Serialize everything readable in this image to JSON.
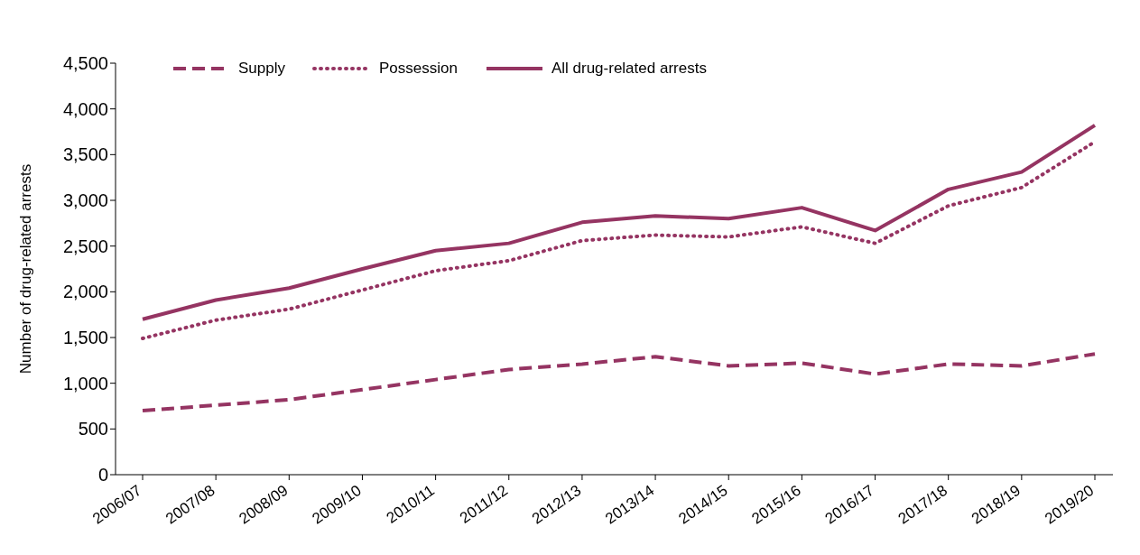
{
  "chart_data": {
    "type": "line",
    "ylabel": "Number of drug-related arrests",
    "categories": [
      "2006/07",
      "2007/08",
      "2008/09",
      "2009/10",
      "2010/11",
      "2011/12",
      "2012/13",
      "2013/14",
      "2014/15",
      "2015/16",
      "2016/17",
      "2017/18",
      "2018/19",
      "2019/20"
    ],
    "series": [
      {
        "name": "Supply",
        "color": "#953462",
        "line_style": "dashed",
        "values": [
          700,
          760,
          820,
          930,
          1040,
          1150,
          1210,
          1290,
          1190,
          1220,
          1100,
          1210,
          1190,
          1320
        ]
      },
      {
        "name": "Possession",
        "color": "#953462",
        "line_style": "dotted",
        "values": [
          1490,
          1690,
          1810,
          2020,
          2230,
          2340,
          2560,
          2620,
          2600,
          2710,
          2530,
          2940,
          3140,
          3640
        ]
      },
      {
        "name": "All drug-related arrests",
        "color": "#953462",
        "line_style": "solid",
        "values": [
          1700,
          1910,
          2040,
          2250,
          2450,
          2530,
          2760,
          2830,
          2800,
          2920,
          2670,
          3120,
          3310,
          3820
        ]
      }
    ],
    "ylim": [
      0,
      4500
    ],
    "yticks": [
      0,
      500,
      {
        "value": 1000,
        "label": "1,000"
      },
      {
        "value": 1500,
        "label": "1,500"
      },
      {
        "value": 2000,
        "label": "2,000"
      },
      {
        "value": 2500,
        "label": "2,500"
      },
      {
        "value": 3000,
        "label": "3,000"
      },
      {
        "value": 3500,
        "label": "3,500"
      },
      {
        "value": 4000,
        "label": "4,000"
      },
      {
        "value": 4500,
        "label": "4,500"
      }
    ],
    "legend": "top left",
    "marker": "none"
  }
}
